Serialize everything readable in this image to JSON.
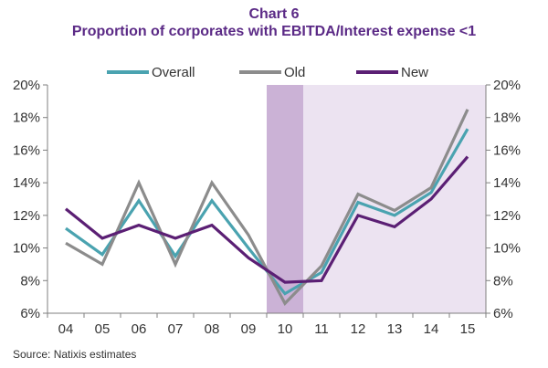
{
  "chart_data": {
    "type": "line",
    "title_line1": "Chart 6",
    "title_line2": "Proportion of corporates with EBITDA/Interest expense <1",
    "source": "Source: Natixis estimates",
    "categories": [
      "04",
      "05",
      "06",
      "07",
      "08",
      "09",
      "10",
      "11",
      "12",
      "13",
      "14",
      "15"
    ],
    "y_ticks": [
      "6%",
      "8%",
      "10%",
      "12%",
      "14%",
      "16%",
      "18%",
      "20%"
    ],
    "ylim": [
      6,
      20
    ],
    "series": [
      {
        "name": "Overall",
        "color": "#4aa3b0",
        "values": [
          11.2,
          9.6,
          12.9,
          9.5,
          12.9,
          10.0,
          7.2,
          8.5,
          12.8,
          12.0,
          13.4,
          17.3
        ]
      },
      {
        "name": "Old",
        "color": "#8c8c8c",
        "values": [
          10.3,
          9.0,
          14.0,
          9.0,
          14.0,
          10.8,
          6.6,
          8.9,
          13.3,
          12.3,
          13.7,
          18.5
        ]
      },
      {
        "name": "New",
        "color": "#5b1f74",
        "values": [
          12.4,
          10.6,
          11.4,
          10.6,
          11.4,
          9.4,
          7.9,
          8.0,
          12.0,
          11.3,
          13.0,
          15.6
        ]
      }
    ],
    "shaded_regions": [
      {
        "from": "10",
        "to": "10",
        "color": "#cbb2d6"
      },
      {
        "from": "11",
        "to": "15",
        "color": "#ece3f1"
      }
    ]
  }
}
